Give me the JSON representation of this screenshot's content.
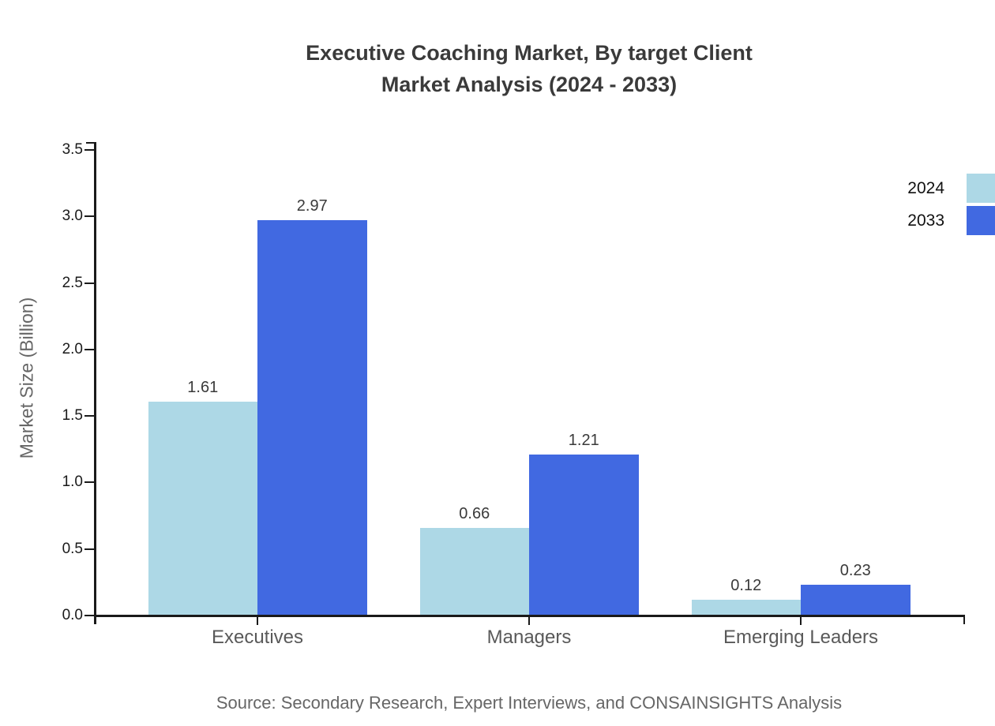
{
  "title": {
    "line1": "Executive Coaching Market, By target Client",
    "line2": "Market Analysis (2024 - 2033)"
  },
  "source": "Source: Secondary Research, Expert Interviews, and CONSAINSIGHTS Analysis",
  "chart_data": {
    "type": "bar",
    "title": "Executive Coaching Market, By target Client Market Analysis (2024 - 2033)",
    "categories": [
      "Executives",
      "Managers",
      "Emerging Leaders"
    ],
    "series": [
      {
        "name": "2024",
        "color": "#ADD8E6",
        "values": [
          1.61,
          0.66,
          0.12
        ]
      },
      {
        "name": "2033",
        "color": "#4169E1",
        "values": [
          2.97,
          1.21,
          0.23
        ]
      }
    ],
    "xlabel": "",
    "ylabel": "Market Size (Billion)",
    "ylim": [
      0,
      3.5
    ],
    "yticks": [
      0.0,
      0.5,
      1.0,
      1.5,
      2.0,
      2.5,
      3.0,
      3.5
    ],
    "ytick_labels": [
      "0.0",
      "0.5",
      "1.0",
      "1.5",
      "2.0",
      "2.5",
      "3.0",
      "3.5"
    ],
    "grid": false,
    "value_labels": true,
    "legend_position": "right"
  },
  "colors": {
    "series_2024": "#ADD8E6",
    "series_2033": "#4169E1",
    "axis": "#1a1a1a",
    "title_text": "#3a3a3a",
    "category_text": "#595959",
    "axis_title_text": "#666666",
    "tick_label_text": "#1a1a1a",
    "value_label_text": "#3a3a3a",
    "source_text": "#666666",
    "background": "#ffffff"
  }
}
